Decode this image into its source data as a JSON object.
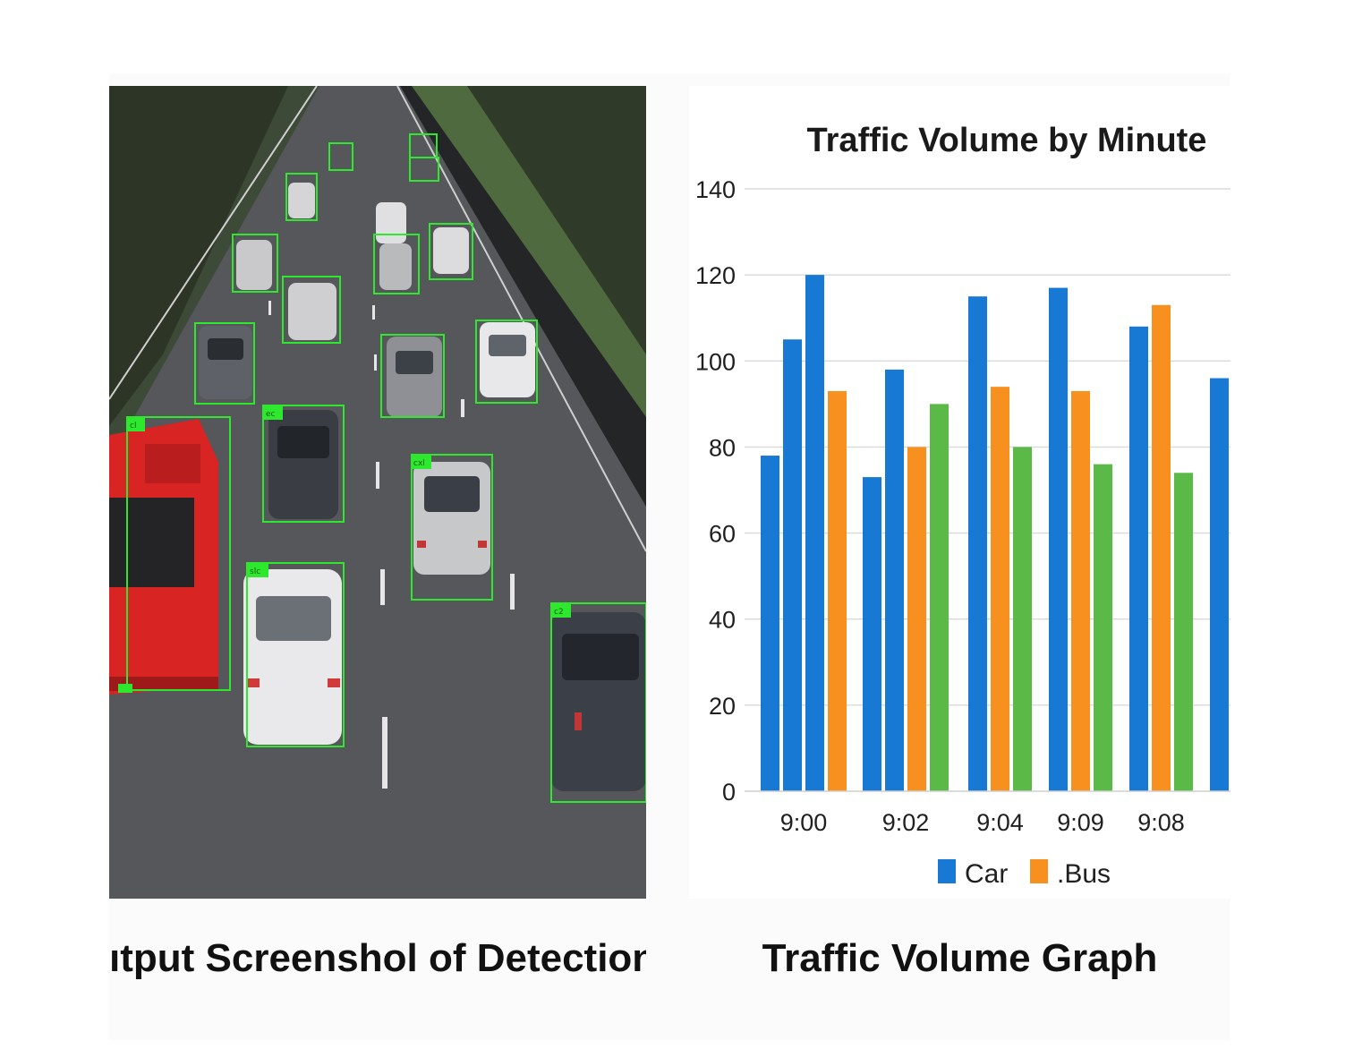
{
  "image": {
    "alt": "Road traffic scene with green detection bounding boxes around cars and a red bus",
    "box_color": "#2ee82e",
    "box_tags": [
      "cl",
      "ec",
      "cxl",
      "slc",
      "c2"
    ]
  },
  "chart_data": {
    "type": "bar",
    "title": "Traffic Volume by Minute",
    "xlabel": "",
    "ylabel": "",
    "ylim": [
      0,
      140
    ],
    "yticks": [
      0,
      20,
      40,
      60,
      80,
      100,
      120,
      140
    ],
    "grid": true,
    "legend_position": "bottom",
    "categories": [
      "9:00",
      "9:02",
      "9:04",
      "9:09",
      "9:08"
    ],
    "legend": [
      {
        "name": "Car",
        "color": "#1779d3"
      },
      {
        "name": ".Bus",
        "color": "#f7901e"
      }
    ],
    "colors": {
      "blue": "#1779d3",
      "orange": "#f7901e",
      "green": "#5bb947"
    },
    "bar_groups": [
      {
        "category": "9:00",
        "bars": [
          {
            "color": "blue",
            "value": 78
          },
          {
            "color": "blue",
            "value": 105
          },
          {
            "color": "blue",
            "value": 120
          },
          {
            "color": "orange",
            "value": 93
          }
        ]
      },
      {
        "category": "9:02",
        "bars": [
          {
            "color": "blue",
            "value": 73
          },
          {
            "color": "blue",
            "value": 98
          },
          {
            "color": "orange",
            "value": 80
          },
          {
            "color": "green",
            "value": 90
          }
        ]
      },
      {
        "category": "9:04",
        "bars": [
          {
            "color": "blue",
            "value": 115
          },
          {
            "color": "orange",
            "value": 94
          },
          {
            "color": "green",
            "value": 80
          }
        ]
      },
      {
        "category": "9:09",
        "bars": [
          {
            "color": "blue",
            "value": 117
          },
          {
            "color": "orange",
            "value": 93
          },
          {
            "color": "green",
            "value": 76
          }
        ]
      },
      {
        "category": "9:08",
        "bars": [
          {
            "color": "blue",
            "value": 108
          },
          {
            "color": "orange",
            "value": 113
          },
          {
            "color": "green",
            "value": 74
          }
        ]
      },
      {
        "category": "",
        "bars": [
          {
            "color": "blue",
            "value": 96
          }
        ]
      }
    ]
  },
  "captions": {
    "left": "ıtput Screenshol of Detection Model",
    "right": "Traffic Volume Graph"
  }
}
